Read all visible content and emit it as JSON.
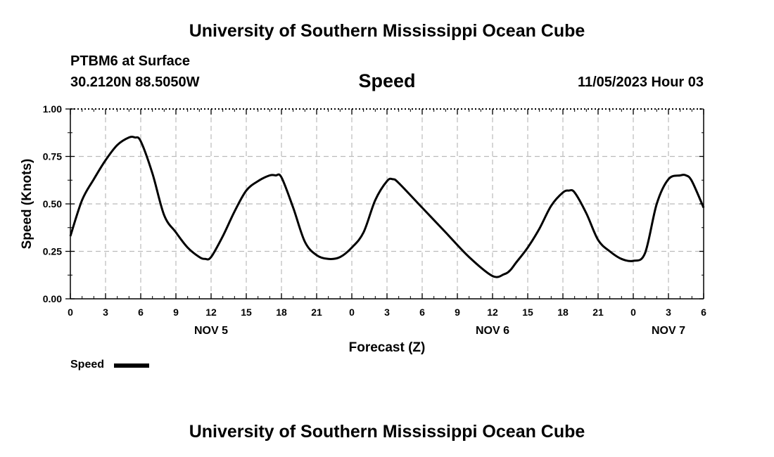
{
  "header": {
    "title_top": "University of Southern Mississippi Ocean Cube",
    "station": "PTBM6 at Surface",
    "coords": "30.2120N  88.5050W",
    "variable": "Speed",
    "datetime": "11/05/2023 Hour 03",
    "title_bottom": "University of Southern Mississippi Ocean Cube"
  },
  "legend": {
    "label": "Speed"
  },
  "chart_data": {
    "type": "line",
    "title": "Speed",
    "xlabel": "Forecast (Z)",
    "ylabel": "Speed (Knots)",
    "xlim": [
      0,
      54
    ],
    "ylim": [
      0,
      1
    ],
    "x_tick_labels": [
      "0",
      "3",
      "6",
      "9",
      "12",
      "15",
      "18",
      "21",
      "0",
      "3",
      "6",
      "9",
      "12",
      "15",
      "18",
      "21",
      "0",
      "3",
      "6"
    ],
    "day_labels": [
      {
        "hour": 12,
        "label": "NOV 5"
      },
      {
        "hour": 36,
        "label": "NOV 6"
      },
      {
        "hour": 51,
        "label": "NOV 7"
      }
    ],
    "y_ticks": [
      0,
      0.25,
      0.5,
      0.75,
      1.0
    ],
    "y_tick_labels": [
      "0.00",
      "0.25",
      "0.50",
      "0.75",
      "1.00"
    ],
    "grid": true,
    "legend_position": "bottom-left",
    "series": [
      {
        "name": "Speed",
        "x": [
          0,
          1,
          2,
          3,
          4,
          5,
          5.5,
          6,
          7,
          8,
          9,
          10,
          11,
          11.5,
          12,
          13,
          14,
          15,
          16,
          17,
          17.5,
          18,
          19,
          20,
          21,
          22,
          23,
          24,
          25,
          26,
          27,
          27.5,
          28,
          30,
          32,
          34,
          36,
          37,
          37.5,
          38,
          39,
          40,
          41,
          42,
          42.5,
          43,
          44,
          45,
          46,
          47,
          48,
          49,
          50,
          51,
          52,
          52.5,
          53,
          54
        ],
        "y": [
          0.33,
          0.52,
          0.63,
          0.73,
          0.81,
          0.85,
          0.85,
          0.83,
          0.66,
          0.44,
          0.35,
          0.27,
          0.22,
          0.21,
          0.22,
          0.33,
          0.46,
          0.57,
          0.62,
          0.65,
          0.65,
          0.64,
          0.48,
          0.3,
          0.23,
          0.21,
          0.22,
          0.27,
          0.35,
          0.52,
          0.62,
          0.63,
          0.61,
          0.48,
          0.35,
          0.22,
          0.12,
          0.13,
          0.15,
          0.19,
          0.27,
          0.37,
          0.49,
          0.56,
          0.57,
          0.56,
          0.45,
          0.31,
          0.25,
          0.21,
          0.2,
          0.24,
          0.5,
          0.63,
          0.65,
          0.65,
          0.62,
          0.48
        ]
      }
    ]
  }
}
